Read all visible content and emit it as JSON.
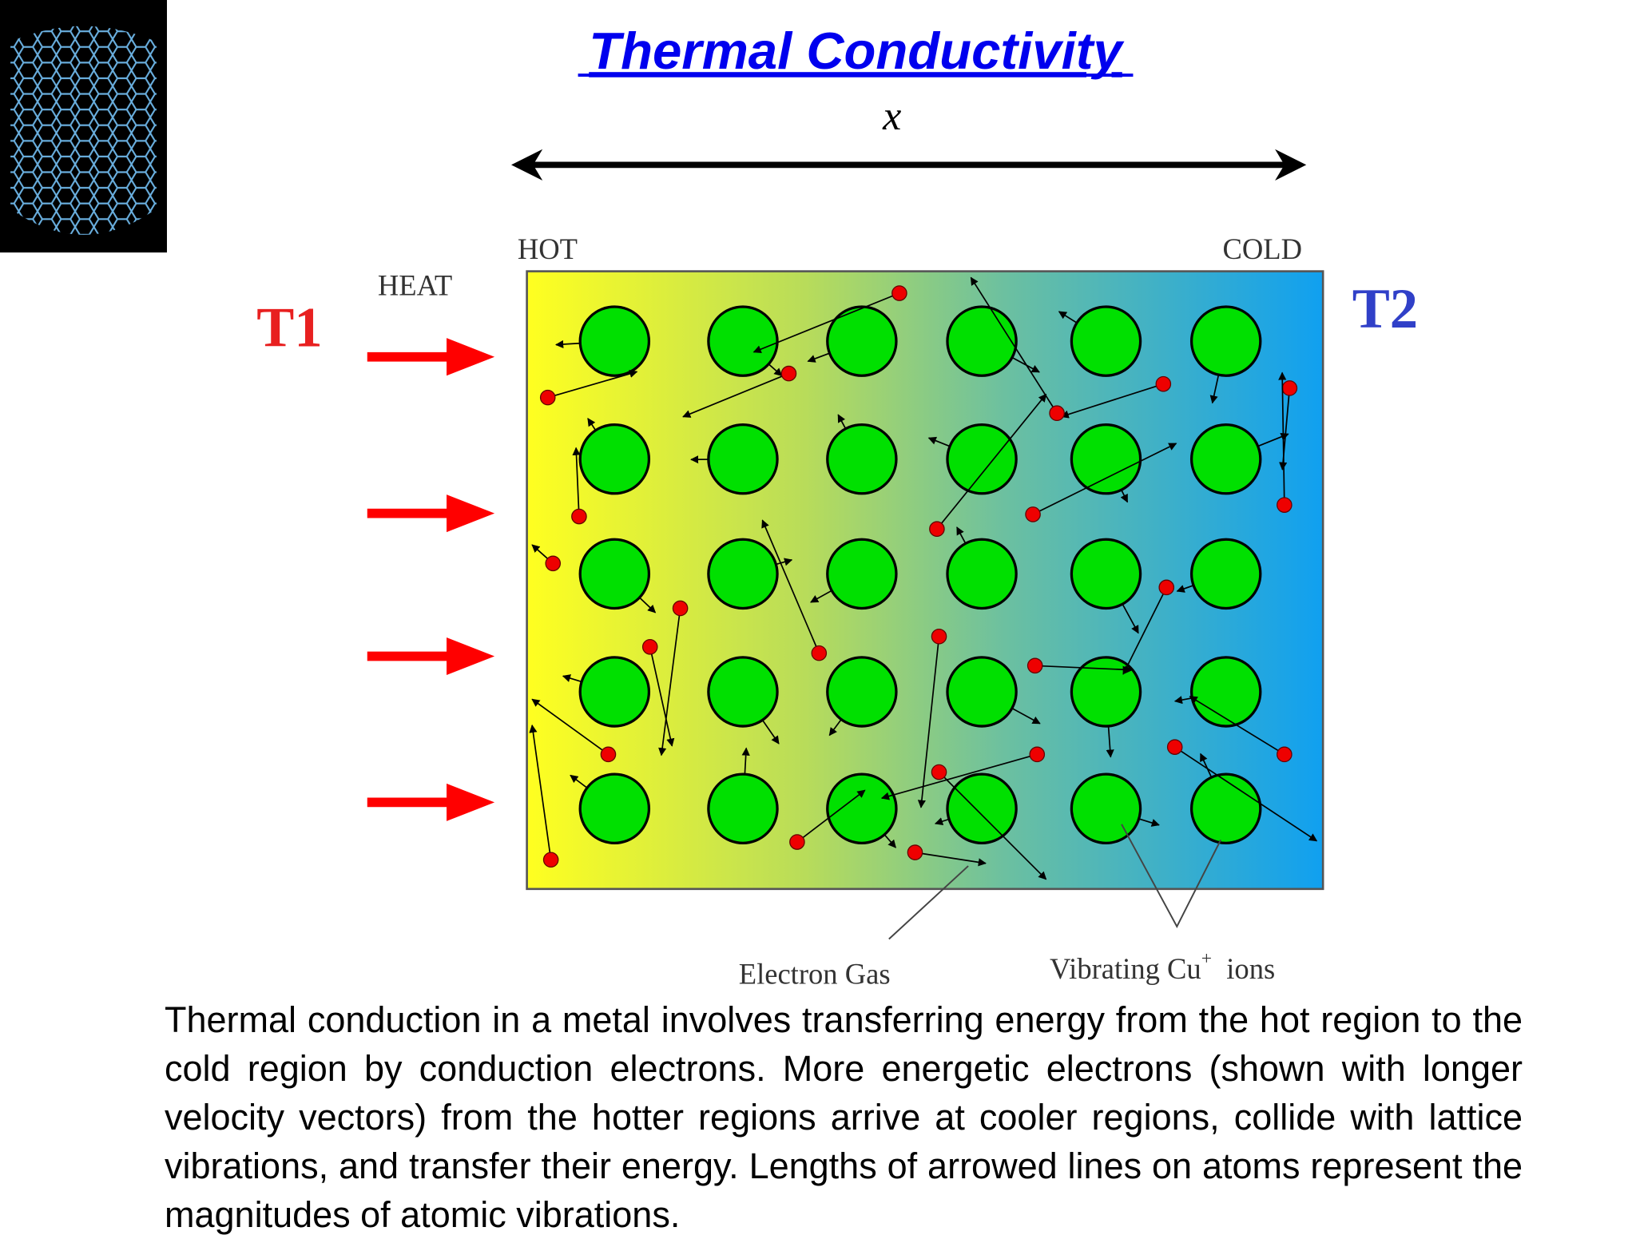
{
  "header": {
    "title": "Thermal Conductivity"
  },
  "diagram": {
    "x_label": "x",
    "hot": "HOT",
    "cold": "COLD",
    "heat": "HEAT",
    "t1": "T1",
    "t2": "T2",
    "electron_gas": "Electron Gas",
    "ions": "Vibrating Cu",
    "ions_sup": "+",
    "ions_end": "ions"
  },
  "body": {
    "text": "Thermal conduction in a metal involves transferring energy from the hot region to the cold region by conduction electrons. More energetic electrons (shown with longer velocity vectors) from the hotter regions arrive at cooler regions, collide with lattice vibrations, and transfer their energy. Lengths of arrowed lines on atoms represent the magnitudes of atomic vibrations."
  }
}
